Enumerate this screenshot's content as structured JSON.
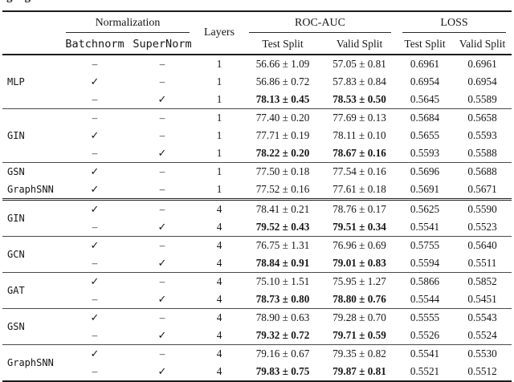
{
  "page": {
    "clipped_caption_fragment": "gg"
  },
  "table": {
    "header": {
      "normalization": "Normalization",
      "batchnorm": "Batchnorm",
      "supernorm": "SuperNorm",
      "layers": "Layers",
      "roc_auc": "ROC-AUC",
      "loss": "LOSS",
      "test_split": "Test Split",
      "valid_split": "Valid Split"
    },
    "symbols": {
      "check": "✓",
      "dash": "–",
      "plus_minus": "±"
    },
    "groups": [
      {
        "separator_after": "thin",
        "models": [
          {
            "name": "MLP",
            "rows": [
              {
                "batchnorm": "–",
                "supernorm": "–",
                "layers": "1",
                "roc_test": "56.66 ± 1.09",
                "roc_valid": "57.05 ± 0.81",
                "loss_test": "0.6961",
                "loss_valid": "0.6961",
                "bold": false
              },
              {
                "batchnorm": "✓",
                "supernorm": "–",
                "layers": "1",
                "roc_test": "56.86 ± 0.72",
                "roc_valid": "57.83 ± 0.84",
                "loss_test": "0.6954",
                "loss_valid": "0.6954",
                "bold": false
              },
              {
                "batchnorm": "–",
                "supernorm": "✓",
                "layers": "1",
                "roc_test": "78.13 ± 0.45",
                "roc_valid": "78.53 ± 0.50",
                "loss_test": "0.5645",
                "loss_valid": "0.5589",
                "bold": true
              }
            ]
          }
        ]
      },
      {
        "separator_after": "thin",
        "models": [
          {
            "name": "GIN",
            "rows": [
              {
                "batchnorm": "–",
                "supernorm": "–",
                "layers": "1",
                "roc_test": "77.40 ± 0.20",
                "roc_valid": "77.69 ± 0.13",
                "loss_test": "0.5684",
                "loss_valid": "0.5658",
                "bold": false
              },
              {
                "batchnorm": "✓",
                "supernorm": "–",
                "layers": "1",
                "roc_test": "77.71 ± 0.19",
                "roc_valid": "78.11 ± 0.10",
                "loss_test": "0.5655",
                "loss_valid": "0.5593",
                "bold": false
              },
              {
                "batchnorm": "–",
                "supernorm": "✓",
                "layers": "1",
                "roc_test": "78.22 ± 0.20",
                "roc_valid": "78.67 ± 0.16",
                "loss_test": "0.5593",
                "loss_valid": "0.5588",
                "bold": true
              }
            ]
          }
        ]
      },
      {
        "separator_after": "double",
        "models": [
          {
            "name": "GSN",
            "rows": [
              {
                "batchnorm": "✓",
                "supernorm": "–",
                "layers": "1",
                "roc_test": "77.50 ± 0.18",
                "roc_valid": "77.54 ± 0.16",
                "loss_test": "0.5696",
                "loss_valid": "0.5688",
                "bold": false
              }
            ]
          },
          {
            "name": "GraphSNN",
            "rows": [
              {
                "batchnorm": "✓",
                "supernorm": "–",
                "layers": "1",
                "roc_test": "77.52 ± 0.16",
                "roc_valid": "77.61 ± 0.18",
                "loss_test": "0.5691",
                "loss_valid": "0.5671",
                "bold": false
              }
            ]
          }
        ]
      },
      {
        "separator_after": "thin",
        "models": [
          {
            "name": "GIN",
            "rows": [
              {
                "batchnorm": "✓",
                "supernorm": "–",
                "layers": "4",
                "roc_test": "78.41 ± 0.21",
                "roc_valid": "78.76 ± 0.17",
                "loss_test": "0.5625",
                "loss_valid": "0.5590",
                "bold": false
              },
              {
                "batchnorm": "–",
                "supernorm": "✓",
                "layers": "4",
                "roc_test": "79.52 ± 0.43",
                "roc_valid": "79.51 ± 0.34",
                "loss_test": "0.5541",
                "loss_valid": "0.5523",
                "bold": true
              }
            ]
          }
        ]
      },
      {
        "separator_after": "thin",
        "models": [
          {
            "name": "GCN",
            "rows": [
              {
                "batchnorm": "✓",
                "supernorm": "–",
                "layers": "4",
                "roc_test": "76.75 ± 1.31",
                "roc_valid": "76.96 ± 0.69",
                "loss_test": "0.5755",
                "loss_valid": "0.5640",
                "bold": false
              },
              {
                "batchnorm": "–",
                "supernorm": "✓",
                "layers": "4",
                "roc_test": "78.84 ± 0.91",
                "roc_valid": "79.01 ± 0.83",
                "loss_test": "0.5594",
                "loss_valid": "0.5511",
                "bold": true
              }
            ]
          }
        ]
      },
      {
        "separator_after": "thin",
        "models": [
          {
            "name": "GAT",
            "rows": [
              {
                "batchnorm": "✓",
                "supernorm": "–",
                "layers": "4",
                "roc_test": "75.10 ± 1.51",
                "roc_valid": "75.95 ± 1.27",
                "loss_test": "0.5866",
                "loss_valid": "0.5852",
                "bold": false
              },
              {
                "batchnorm": "–",
                "supernorm": "✓",
                "layers": "4",
                "roc_test": "78.73 ± 0.80",
                "roc_valid": "78.80 ± 0.76",
                "loss_test": "0.5544",
                "loss_valid": "0.5451",
                "bold": true
              }
            ]
          }
        ]
      },
      {
        "separator_after": "thin",
        "models": [
          {
            "name": "GSN",
            "rows": [
              {
                "batchnorm": "✓",
                "supernorm": "–",
                "layers": "4",
                "roc_test": "78.90 ± 0.63",
                "roc_valid": "79.28 ± 0.70",
                "loss_test": "0.5555",
                "loss_valid": "0.5543",
                "bold": false
              },
              {
                "batchnorm": "–",
                "supernorm": "✓",
                "layers": "4",
                "roc_test": "79.32 ± 0.72",
                "roc_valid": "79.71 ± 0.59",
                "loss_test": "0.5526",
                "loss_valid": "0.5524",
                "bold": true
              }
            ]
          }
        ]
      },
      {
        "separator_after": "none",
        "models": [
          {
            "name": "GraphSNN",
            "rows": [
              {
                "batchnorm": "✓",
                "supernorm": "–",
                "layers": "4",
                "roc_test": "79.16 ± 0.67",
                "roc_valid": "79.35 ± 0.82",
                "loss_test": "0.5541",
                "loss_valid": "0.5530",
                "bold": false
              },
              {
                "batchnorm": "–",
                "supernorm": "✓",
                "layers": "4",
                "roc_test": "79.83 ± 0.75",
                "roc_valid": "79.87 ± 0.81",
                "loss_test": "0.5521",
                "loss_valid": "0.5512",
                "bold": true
              }
            ]
          }
        ]
      }
    ]
  }
}
